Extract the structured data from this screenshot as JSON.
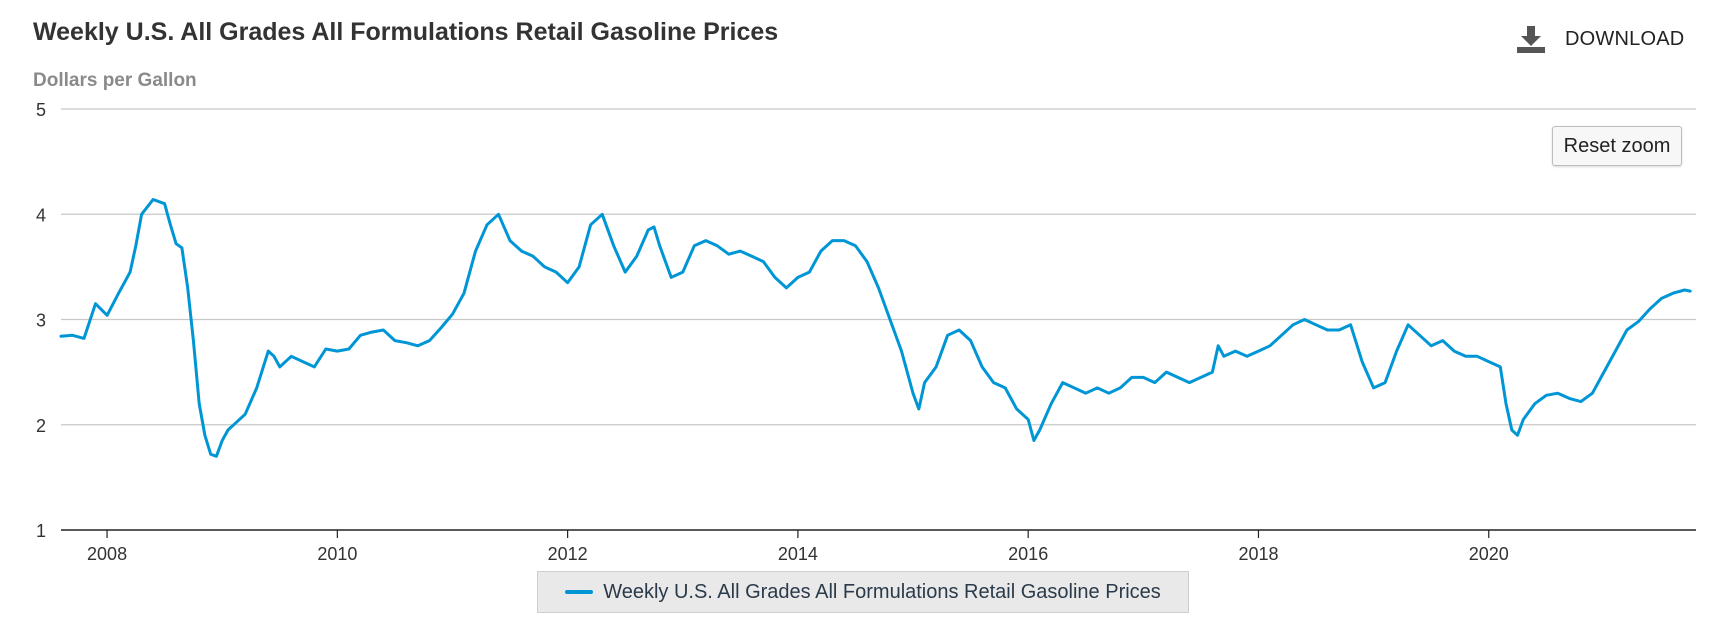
{
  "header": {
    "title": "Weekly U.S. All Grades All Formulations Retail Gasoline Prices",
    "download_label": "DOWNLOAD"
  },
  "controls": {
    "reset_zoom_label": "Reset zoom"
  },
  "colors": {
    "series": "#0096d6",
    "grid": "#c8c8c8",
    "axis": "#222222",
    "legend_bg": "#e9e9e9"
  },
  "chart_data": {
    "type": "line",
    "title": "Weekly U.S. All Grades All Formulations Retail Gasoline Prices",
    "ylabel": "Dollars per Gallon",
    "xlabel": "",
    "ylim": [
      1,
      5
    ],
    "xlim": [
      2007.6,
      2021.8
    ],
    "yticks": [
      "1",
      "2",
      "3",
      "4",
      "5"
    ],
    "xticks": [
      "2008",
      "2010",
      "2012",
      "2014",
      "2016",
      "2018",
      "2020"
    ],
    "grid": true,
    "legend_position": "bottom-center",
    "series": [
      {
        "name": "Weekly U.S. All Grades All Formulations Retail Gasoline Prices",
        "x": [
          2007.6,
          2007.7,
          2007.8,
          2007.9,
          2008.0,
          2008.1,
          2008.2,
          2008.25,
          2008.3,
          2008.4,
          2008.5,
          2008.55,
          2008.6,
          2008.65,
          2008.7,
          2008.75,
          2008.8,
          2008.85,
          2008.9,
          2008.95,
          2009.0,
          2009.05,
          2009.1,
          2009.2,
          2009.3,
          2009.4,
          2009.45,
          2009.5,
          2009.6,
          2009.7,
          2009.8,
          2009.9,
          2010.0,
          2010.1,
          2010.2,
          2010.3,
          2010.4,
          2010.5,
          2010.6,
          2010.7,
          2010.8,
          2010.9,
          2011.0,
          2011.1,
          2011.2,
          2011.3,
          2011.4,
          2011.5,
          2011.6,
          2011.7,
          2011.8,
          2011.9,
          2012.0,
          2012.1,
          2012.2,
          2012.3,
          2012.4,
          2012.5,
          2012.6,
          2012.7,
          2012.75,
          2012.8,
          2012.9,
          2013.0,
          2013.1,
          2013.2,
          2013.3,
          2013.4,
          2013.5,
          2013.6,
          2013.7,
          2013.8,
          2013.9,
          2014.0,
          2014.1,
          2014.2,
          2014.3,
          2014.4,
          2014.5,
          2014.6,
          2014.7,
          2014.8,
          2014.9,
          2015.0,
          2015.05,
          2015.1,
          2015.2,
          2015.3,
          2015.4,
          2015.5,
          2015.6,
          2015.7,
          2015.8,
          2015.9,
          2016.0,
          2016.05,
          2016.1,
          2016.2,
          2016.3,
          2016.4,
          2016.5,
          2016.6,
          2016.7,
          2016.8,
          2016.9,
          2017.0,
          2017.1,
          2017.2,
          2017.3,
          2017.4,
          2017.5,
          2017.6,
          2017.65,
          2017.7,
          2017.8,
          2017.9,
          2018.0,
          2018.1,
          2018.2,
          2018.3,
          2018.4,
          2018.5,
          2018.6,
          2018.7,
          2018.8,
          2018.9,
          2019.0,
          2019.1,
          2019.2,
          2019.3,
          2019.4,
          2019.5,
          2019.6,
          2019.7,
          2019.8,
          2019.9,
          2020.0,
          2020.1,
          2020.15,
          2020.2,
          2020.25,
          2020.3,
          2020.4,
          2020.5,
          2020.6,
          2020.7,
          2020.8,
          2020.9,
          2021.0,
          2021.1,
          2021.2,
          2021.3,
          2021.4,
          2021.5,
          2021.6,
          2021.7,
          2021.75
        ],
        "values": [
          2.84,
          2.85,
          2.82,
          3.15,
          3.04,
          3.25,
          3.45,
          3.7,
          4.0,
          4.14,
          4.1,
          3.9,
          3.72,
          3.68,
          3.3,
          2.8,
          2.2,
          1.9,
          1.72,
          1.7,
          1.85,
          1.95,
          2.0,
          2.1,
          2.35,
          2.7,
          2.65,
          2.55,
          2.65,
          2.6,
          2.55,
          2.72,
          2.7,
          2.72,
          2.85,
          2.88,
          2.9,
          2.8,
          2.78,
          2.75,
          2.8,
          2.92,
          3.05,
          3.25,
          3.65,
          3.9,
          4.0,
          3.75,
          3.65,
          3.6,
          3.5,
          3.45,
          3.35,
          3.5,
          3.9,
          4.0,
          3.7,
          3.45,
          3.6,
          3.85,
          3.88,
          3.7,
          3.4,
          3.45,
          3.7,
          3.75,
          3.7,
          3.62,
          3.65,
          3.6,
          3.55,
          3.4,
          3.3,
          3.4,
          3.45,
          3.65,
          3.75,
          3.75,
          3.7,
          3.55,
          3.3,
          3.0,
          2.7,
          2.3,
          2.15,
          2.4,
          2.55,
          2.85,
          2.9,
          2.8,
          2.55,
          2.4,
          2.35,
          2.15,
          2.05,
          1.85,
          1.95,
          2.2,
          2.4,
          2.35,
          2.3,
          2.35,
          2.3,
          2.35,
          2.45,
          2.45,
          2.4,
          2.5,
          2.45,
          2.4,
          2.45,
          2.5,
          2.75,
          2.65,
          2.7,
          2.65,
          2.7,
          2.75,
          2.85,
          2.95,
          3.0,
          2.95,
          2.9,
          2.9,
          2.95,
          2.6,
          2.35,
          2.4,
          2.7,
          2.95,
          2.85,
          2.75,
          2.8,
          2.7,
          2.65,
          2.65,
          2.6,
          2.55,
          2.2,
          1.95,
          1.9,
          2.05,
          2.2,
          2.28,
          2.3,
          2.25,
          2.22,
          2.3,
          2.5,
          2.7,
          2.9,
          2.98,
          3.1,
          3.2,
          3.25,
          3.28,
          3.27
        ]
      }
    ]
  }
}
